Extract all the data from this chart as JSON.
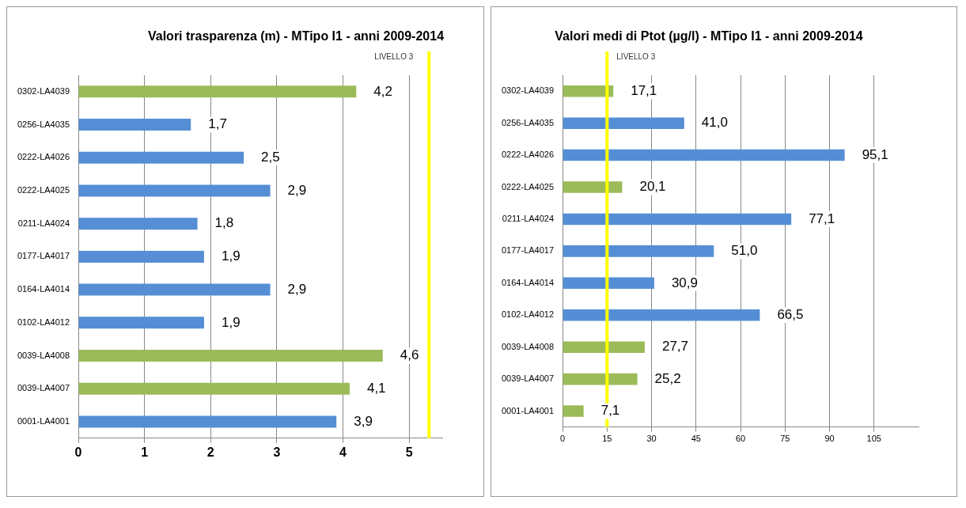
{
  "chart_data": [
    {
      "type": "bar",
      "orientation": "horizontal",
      "title": "Valori trasparenza (m) - MTipo  I1 -  anni 2009-2014",
      "categories": [
        "0302-LA4039",
        "0256-LA4035",
        "0222-LA4026",
        "0222-LA4025",
        "0211-LA4024",
        "0177-LA4017",
        "0164-LA4014",
        "0102-LA4012",
        "0039-LA4008",
        "0039-LA4007",
        "0001-LA4001"
      ],
      "values": [
        4.2,
        1.7,
        2.5,
        2.9,
        1.8,
        1.9,
        2.9,
        1.9,
        4.6,
        4.1,
        3.9
      ],
      "colors": [
        "#9bbb59",
        "#558ed5",
        "#558ed5",
        "#558ed5",
        "#558ed5",
        "#558ed5",
        "#558ed5",
        "#558ed5",
        "#9bbb59",
        "#9bbb59",
        "#558ed5"
      ],
      "value_labels": [
        "4,2",
        "1,7",
        "2,5",
        "2,9",
        "1,8",
        "1,9",
        "2,9",
        "1,9",
        "4,6",
        "4,1",
        "3,9"
      ],
      "xlim": [
        0,
        5.5
      ],
      "xticks": [
        0,
        1,
        2,
        3,
        4,
        5
      ],
      "grid": "x",
      "legend": false,
      "ref_lines": [
        {
          "axis": "x",
          "value": 5.3,
          "label": "LIVELLO 3",
          "color": "#ffff00"
        }
      ]
    },
    {
      "type": "bar",
      "orientation": "horizontal",
      "title": "Valori medi di Ptot (µg/l) - MTipo  I1 -  anni 2009-2014",
      "categories": [
        "0302-LA4039",
        "0256-LA4035",
        "0222-LA4026",
        "0222-LA4025",
        "0211-LA4024",
        "0177-LA4017",
        "0164-LA4014",
        "0102-LA4012",
        "0039-LA4008",
        "0039-LA4007",
        "0001-LA4001"
      ],
      "values": [
        17.1,
        41.0,
        95.1,
        20.1,
        77.1,
        51.0,
        30.9,
        66.5,
        27.7,
        25.2,
        7.1
      ],
      "colors": [
        "#9bbb59",
        "#558ed5",
        "#558ed5",
        "#9bbb59",
        "#558ed5",
        "#558ed5",
        "#558ed5",
        "#558ed5",
        "#9bbb59",
        "#9bbb59",
        "#9bbb59"
      ],
      "value_labels": [
        "17,1",
        "41,0",
        "95,1",
        "20,1",
        "77,1",
        "51,0",
        "30,9",
        "66,5",
        "27,7",
        "25,2",
        "7,1"
      ],
      "xlim": [
        0,
        120
      ],
      "xticks": [
        0,
        15,
        30,
        45,
        60,
        75,
        90,
        105
      ],
      "grid": "x",
      "legend": false,
      "ref_lines": [
        {
          "axis": "x",
          "value": 15,
          "label": "LIVELLO 3",
          "color": "#ffff00"
        }
      ]
    }
  ]
}
